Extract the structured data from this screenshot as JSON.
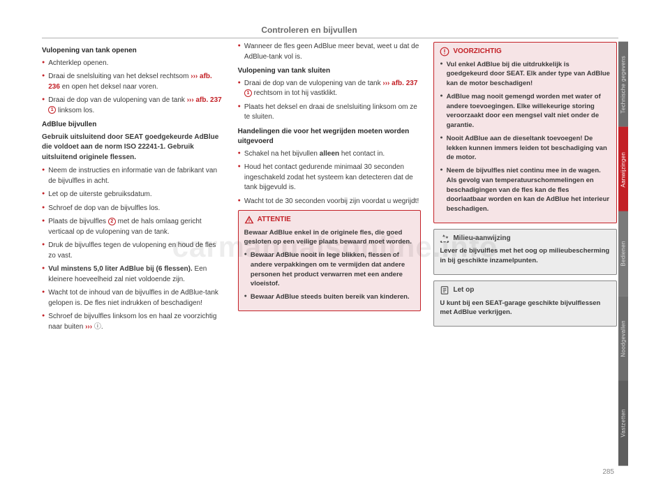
{
  "page_title": "Controleren en bijvullen",
  "page_number": "285",
  "watermark": "carmanualsonline.info",
  "colors": {
    "accent_red": "#c32026",
    "box_pink_bg": "#f6e4e6",
    "box_grey_bg": "#ececec",
    "tab_bg_dark": "#4a4a4a",
    "tab_bg_mid": "#6e6e6e",
    "tab_bg_light": "#8a8a8a",
    "tab_active_bg": "#c32026"
  },
  "col1": {
    "h1": "Vulopening van tank openen",
    "b1": "Achterklep openen.",
    "b2_a": "Draai de snelsluiting van het deksel rechts­om ",
    "b2_ref": "››› afb. 236",
    "b2_b": " en open het deksel naar vo­ren.",
    "b3_a": "Draai de dop van de vulopening van de tank ",
    "b3_ref": "››› afb. 237 ",
    "b3_circ": "1",
    "b3_b": " linksom los.",
    "h2": "AdBlue bijvullen",
    "p1": "Gebruik uitsluitend door SEAT goedgekeurde AdBlue die voldoet aan de norm ISO 22241-1. Gebruik uitsluitend originele flessen.",
    "b4": "Neem de instructies en informatie van de fabrikant van de bijvulfles in acht.",
    "b5": "Let op de uiterste gebruiksdatum.",
    "b6": "Schroef de dop van de bijvulfles los.",
    "b7_a": "Plaats de bijvulfles ",
    "b7_circ": "2",
    "b7_b": " met de hals omlaag gericht verticaal op de vulopening van de tank.",
    "b8": "Druk de bijvulfles tegen de vulopening en houd de fles zo vast.",
    "b9_a": "Vul minstens 5,0 liter AdBlue bij (6 fles­sen).",
    "b9_b": " Een kleinere hoeveelheid zal niet vol­doende zijn.",
    "b10": "Wacht tot de inhoud van de bijvulfles in de AdBlue-tank gelopen is. De fles niet indruk­ken of beschadigen!",
    "b11_a": "Schroef de bijvulfles linksom los en haal ze voorzichtig naar buiten ",
    "b11_ref": "›››",
    "b11_circ": "ⓘ"
  },
  "col2": {
    "b1": "Wanneer de fles geen AdBlue meer bevat, weet u dat de AdBlue-tank vol is.",
    "h1": "Vulopening van tank sluiten",
    "b2_a": "Draai de dop van de vulopening van de tank ",
    "b2_ref": "››› afb. 237 ",
    "b2_circ": "1",
    "b2_b": " rechtsom in tot hij vast­klikt.",
    "b3": "Plaats het deksel en draai de snelsluiting linksom om ze te sluiten.",
    "h2": "Handelingen die voor het wegrijden moeten worden uitgevoerd",
    "b4_a": "Schakel na het bijvullen ",
    "b4_s": "alleen",
    "b4_b": " het contact in.",
    "b5": "Houd het contact gedurende minimaal 30 seconden ingeschakeld zodat het systeem kan detecteren dat de tank bijgevuld is.",
    "b6": "Wacht tot de 30 seconden voorbij zijn voor­dat u wegrijdt!",
    "attentie_title": "ATTENTIE",
    "attentie_p": "Bewaar AdBlue enkel in de originele fles, die goed gesloten op een veilige plaats bewaard moet worden.",
    "attentie_b1": "Bewaar AdBlue nooit in lege blikken, fles­sen of andere verpakkingen om te vermijden dat andere personen het product verwarren met een andere vloeistof.",
    "attentie_b2": "Bewaar AdBlue steeds buiten bereik van kinderen."
  },
  "col3": {
    "voorz_title": "VOORZICHTIG",
    "voorz_b1": "Vul enkel AdBlue bij die uitdrukkelijk is goedgekeurd door SEAT. Elk ander type van AdBlue kan de motor beschadigen!",
    "voorz_b2": "AdBlue mag nooit gemengd worden met water of andere toevoegingen. Elke willekeu­rige storing veroorzaakt door een mengsel valt niet onder de garantie.",
    "voorz_b3": "Nooit AdBlue aan de dieseltank toevoegen! De lekken kunnen immers leiden tot bescha­diging van de motor.",
    "voorz_b4": "Neem de bijvulfles niet continu mee in de wagen. Als gevolg van temperatuurschomme­lingen en beschadigingen van de fles kan de fles doorlaatbaar worden en kan de AdBlue het interieur beschadigen.",
    "milieu_title": "Milieu-aanwijzing",
    "milieu_p": "Lever de bijvulfles met het oog op milieube­scherming in bij geschikte inzamelpunten.",
    "letop_title": "Let op",
    "letop_p": "U kunt bij een SEAT-garage geschikte bijvul­flessen met AdBlue verkrijgen."
  },
  "tabs": [
    {
      "label": "Technische gegevens",
      "bg": "#6e6e6e",
      "active": false
    },
    {
      "label": "Aanwijzingen",
      "bg": "#c32026",
      "active": true
    },
    {
      "label": "Bedienen",
      "bg": "#7a7a7a",
      "active": false
    },
    {
      "label": "Noodgevallen",
      "bg": "#6e6e6e",
      "active": false
    },
    {
      "label": "Vastzetten",
      "bg": "#5e5e5e",
      "active": false
    }
  ]
}
